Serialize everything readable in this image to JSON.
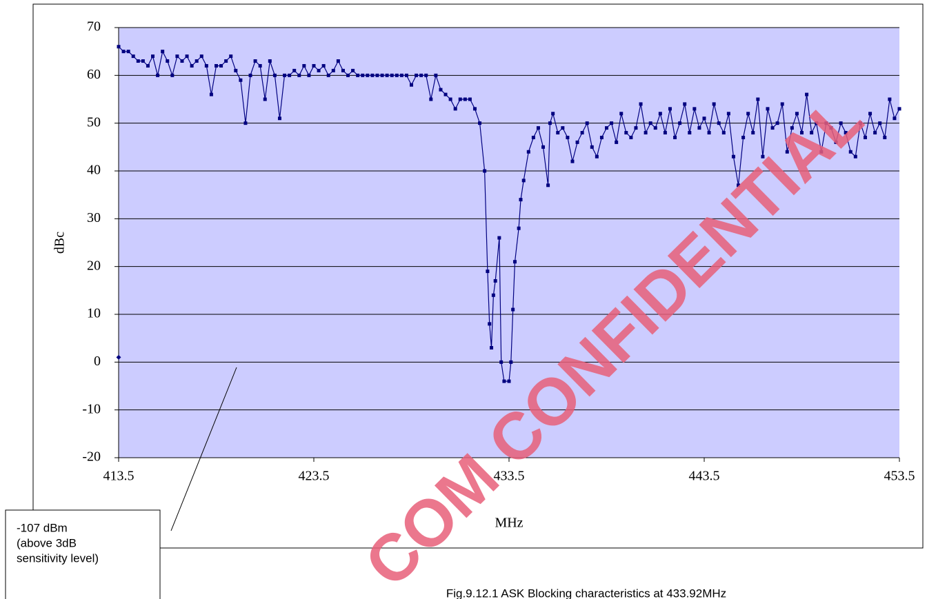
{
  "chart_data": {
    "type": "line",
    "ylabel": "dBc",
    "xlabel": "MHz",
    "caption": "Fig.9.12.1 ASK Blocking characteristics at 433.92MHz",
    "annotation": [
      "-107 dBm",
      "(above 3dB",
      "sensitivity level)"
    ],
    "watermark": "COM CONFIDENTIAL",
    "xlim": [
      413.5,
      453.5
    ],
    "xticks": [
      413.5,
      423.5,
      433.5,
      443.5,
      453.5
    ],
    "ylim": [
      -20,
      70
    ],
    "yticks": [
      -20,
      -10,
      0,
      10,
      20,
      30,
      40,
      50,
      60,
      70
    ],
    "grid": true,
    "background": "#ccccff",
    "series": [
      {
        "color": "#000080",
        "x": [
          413.5,
          413.75,
          414,
          414.25,
          414.5,
          414.75,
          415,
          415.25,
          415.5,
          415.75,
          416,
          416.25,
          416.5,
          416.75,
          417,
          417.25,
          417.5,
          417.75,
          418,
          418.25,
          418.5,
          418.75,
          419,
          419.25,
          419.5,
          419.75,
          420,
          420.25,
          420.5,
          420.75,
          421,
          421.25,
          421.5,
          421.75,
          422,
          422.25,
          422.5,
          422.75,
          423,
          423.25,
          423.5,
          423.75,
          424,
          424.25,
          424.5,
          424.75,
          425,
          425.25,
          425.5,
          425.75,
          426,
          426.25,
          426.5,
          426.75,
          427,
          427.25,
          427.5,
          427.75,
          428,
          428.25,
          428.5,
          428.75,
          429,
          429.25,
          429.5,
          429.75,
          430,
          430.25,
          430.5,
          430.75,
          431,
          431.25,
          431.5,
          431.75,
          432,
          432.25,
          432.4,
          432.5,
          432.6,
          432.7,
          432.8,
          433,
          433.1,
          433.25,
          433.5,
          433.6,
          433.7,
          433.8,
          434,
          434.1,
          434.25,
          434.5,
          434.75,
          435,
          435.25,
          435.5,
          435.6,
          435.75,
          436,
          436.25,
          436.5,
          436.75,
          437,
          437.25,
          437.5,
          437.75,
          438,
          438.25,
          438.5,
          438.75,
          439,
          439.25,
          439.5,
          439.75,
          440,
          440.25,
          440.5,
          440.75,
          441,
          441.25,
          441.5,
          441.75,
          442,
          442.25,
          442.5,
          442.75,
          443,
          443.25,
          443.5,
          443.75,
          444,
          444.25,
          444.5,
          444.75,
          445,
          445.25,
          445.5,
          445.75,
          446,
          446.25,
          446.5,
          446.75,
          447,
          447.25,
          447.5,
          447.75,
          448,
          448.25,
          448.5,
          448.75,
          449,
          449.25,
          449.5,
          449.75,
          450,
          450.25,
          450.5,
          450.75,
          451,
          451.25,
          451.5,
          451.75,
          452,
          452.25,
          452.5,
          452.75,
          453,
          453.25,
          453.5
        ],
        "values": [
          66,
          65,
          65,
          64,
          63,
          63,
          62,
          64,
          60,
          65,
          63,
          60,
          64,
          63,
          64,
          62,
          63,
          64,
          62,
          56,
          62,
          62,
          63,
          64,
          61,
          59,
          50,
          60,
          63,
          62,
          55,
          63,
          60,
          51,
          60,
          60,
          61,
          60,
          62,
          60,
          62,
          61,
          62,
          60,
          61,
          63,
          61,
          60,
          61,
          60,
          60,
          60,
          60,
          60,
          60,
          60,
          60,
          60,
          60,
          60,
          58,
          60,
          60,
          60,
          55,
          60,
          57,
          56,
          55,
          53,
          55,
          55,
          55,
          53,
          50,
          40,
          19,
          8,
          3,
          14,
          17,
          26,
          0,
          -4,
          -4,
          0,
          11,
          21,
          28,
          34,
          38,
          44,
          47,
          49,
          45,
          37,
          50,
          52,
          48,
          49,
          47,
          42,
          46,
          48,
          50,
          45,
          43,
          47,
          49,
          50,
          46,
          52,
          48,
          47,
          49,
          54,
          48,
          50,
          49,
          52,
          48,
          53,
          47,
          50,
          54,
          48,
          53,
          49,
          51,
          48,
          54,
          50,
          48,
          52,
          43,
          37,
          47,
          52,
          48,
          55,
          43,
          53,
          49,
          50,
          54,
          44,
          49,
          52,
          48,
          56,
          48,
          50,
          44,
          50,
          49,
          46,
          50,
          48,
          44,
          43,
          50,
          47,
          52,
          48,
          50,
          47,
          55,
          51,
          53
        ]
      },
      {
        "color": "#000080",
        "x": [
          413.5
        ],
        "values": [
          1
        ]
      }
    ]
  }
}
